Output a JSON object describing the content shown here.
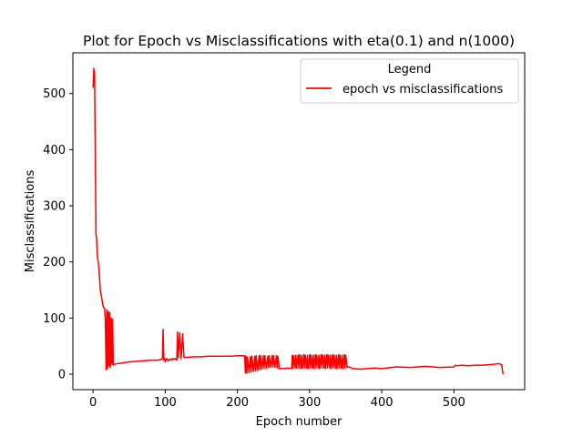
{
  "chart_data": {
    "type": "line",
    "title": "Plot for Epoch vs Misclassifications with eta(0.1) and n(1000)",
    "xlabel": "Epoch number",
    "ylabel": "Misclassifications",
    "xlim": [
      -28,
      598
    ],
    "ylim": [
      -27.5,
      572.5
    ],
    "xticks": [
      0,
      100,
      200,
      300,
      400,
      500
    ],
    "yticks": [
      0,
      100,
      200,
      300,
      400,
      500
    ],
    "grid": false,
    "legend": {
      "title": "Legend",
      "position": "top-right"
    },
    "series": [
      {
        "name": "epoch vs misclassifications",
        "color": "#ff0000",
        "x": [
          0,
          1,
          1.5,
          2,
          3,
          4,
          5,
          6,
          7,
          8,
          10,
          12,
          14,
          16,
          17,
          18,
          19,
          20,
          21,
          22,
          23,
          24,
          25,
          26,
          27,
          28,
          30,
          40,
          50,
          60,
          70,
          80,
          90,
          96,
          97,
          98,
          99,
          100,
          102,
          104,
          106,
          108,
          110,
          112,
          114,
          116,
          117,
          118,
          120,
          122,
          124,
          126,
          130,
          140,
          150,
          160,
          170,
          180,
          190,
          200,
          210,
          211,
          212,
          213,
          214,
          216,
          218,
          219,
          220,
          222,
          224,
          225,
          226,
          228,
          230,
          231,
          232,
          234,
          236,
          237,
          238,
          240,
          242,
          243,
          244,
          246,
          248,
          249,
          250,
          252,
          254,
          255,
          256,
          258,
          260,
          265,
          270,
          275,
          276,
          277,
          278,
          280,
          281,
          282,
          284,
          285,
          286,
          288,
          289,
          290,
          292,
          293,
          294,
          296,
          297,
          298,
          300,
          301,
          302,
          304,
          305,
          306,
          308,
          309,
          310,
          312,
          313,
          314,
          316,
          317,
          318,
          320,
          321,
          322,
          324,
          325,
          326,
          328,
          329,
          330,
          332,
          333,
          334,
          336,
          337,
          338,
          340,
          341,
          342,
          344,
          345,
          346,
          348,
          349,
          350,
          352,
          355,
          360,
          370,
          380,
          390,
          400,
          420,
          440,
          460,
          480,
          500,
          502,
          505,
          510,
          520,
          530,
          540,
          550,
          558,
          562,
          564,
          566,
          568
        ],
        "y": [
          510,
          545,
          530,
          540,
          400,
          250,
          240,
          210,
          200,
          190,
          150,
          135,
          120,
          118,
          95,
          8,
          115,
          10,
          112,
          15,
          110,
          12,
          100,
          18,
          98,
          16,
          18,
          20,
          22,
          23,
          24,
          25,
          25,
          27,
          80,
          25,
          28,
          22,
          28,
          24,
          27,
          25,
          28,
          26,
          28,
          25,
          75,
          30,
          74,
          28,
          72,
          30,
          30,
          31,
          31,
          32,
          32,
          32,
          32,
          33,
          33,
          2,
          32,
          2,
          30,
          3,
          31,
          4,
          32,
          5,
          32,
          6,
          33,
          7,
          33,
          8,
          33,
          9,
          33,
          10,
          33,
          11,
          32,
          12,
          33,
          12,
          33,
          13,
          33,
          12,
          33,
          11,
          32,
          10,
          10,
          10,
          11,
          10,
          34,
          10,
          33,
          11,
          34,
          11,
          34,
          10,
          35,
          11,
          34,
          10,
          35,
          11,
          34,
          11,
          34,
          10,
          35,
          11,
          34,
          11,
          34,
          10,
          35,
          11,
          34,
          11,
          34,
          10,
          35,
          11,
          34,
          11,
          34,
          10,
          35,
          11,
          34,
          11,
          34,
          10,
          35,
          11,
          34,
          11,
          34,
          10,
          35,
          11,
          34,
          11,
          34,
          10,
          35,
          11,
          34,
          12,
          13,
          10,
          9,
          10,
          11,
          10,
          13,
          12,
          14,
          12,
          13,
          16,
          15,
          16,
          15,
          16,
          16,
          17,
          18,
          19,
          18,
          17,
          0
        ]
      }
    ]
  }
}
